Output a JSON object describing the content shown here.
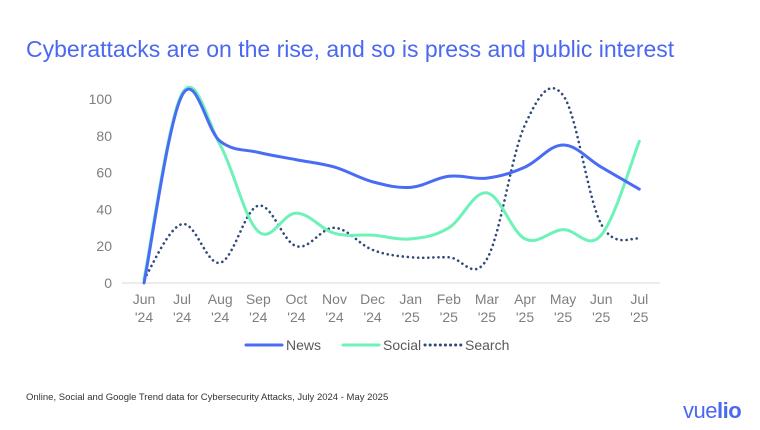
{
  "chart_data": {
    "type": "line",
    "title": "Cyberattacks are on the rise, and so is press and public interest",
    "categories": [
      [
        "Jun",
        "'24"
      ],
      [
        "Jul",
        "'24"
      ],
      [
        "Aug",
        "'24"
      ],
      [
        "Sep",
        "'24"
      ],
      [
        "Oct",
        "'24"
      ],
      [
        "Nov",
        "'24"
      ],
      [
        "Dec",
        "'24"
      ],
      [
        "Jan",
        "'25"
      ],
      [
        "Feb",
        "'25"
      ],
      [
        "Mar",
        "'25"
      ],
      [
        "Apr",
        "'25"
      ],
      [
        "May",
        "'25"
      ],
      [
        "Jun",
        "'25"
      ],
      [
        "Jul",
        "'25"
      ]
    ],
    "ylim": [
      0,
      100
    ],
    "yticks": [
      0,
      20,
      40,
      60,
      80,
      100
    ],
    "legend_position": "bottom",
    "series": [
      {
        "name": "News",
        "color": "#4a6cf4",
        "style": "solid",
        "values": [
          0,
          102,
          77,
          71,
          67,
          63,
          55,
          52,
          58,
          57,
          63,
          75,
          63,
          51
        ]
      },
      {
        "name": "Social",
        "color": "#6ff2b8",
        "style": "solid",
        "values": [
          2,
          103,
          75,
          28,
          38,
          27,
          26,
          24,
          30,
          49,
          24,
          29,
          26,
          77
        ]
      },
      {
        "name": "Search",
        "color": "#2f4a7a",
        "style": "dotted",
        "values": [
          2,
          32,
          11,
          42,
          20,
          30,
          18,
          14,
          14,
          13,
          86,
          102,
          32,
          24
        ]
      }
    ]
  },
  "footnote": "Online, Social and Google Trend data for Cybersecurity Attacks, July 2024 - May 2025",
  "logo": {
    "part1": "vue",
    "part2": "lio"
  }
}
